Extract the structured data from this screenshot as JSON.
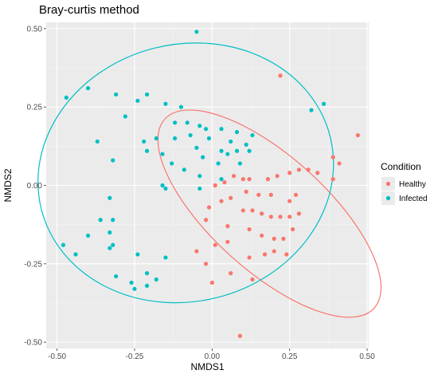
{
  "chart_data": {
    "type": "scatter",
    "title": "Bray-curtis method",
    "xlabel": "NMDS1",
    "ylabel": "NMDS2",
    "xlim": [
      -0.535,
      0.505
    ],
    "ylim": [
      -0.52,
      0.52
    ],
    "x_ticks": [
      -0.5,
      -0.25,
      0.0,
      0.25,
      0.5
    ],
    "x_tick_labels": [
      "-0.50",
      "-0.25",
      "0.00",
      "0.25",
      "0.50"
    ],
    "y_ticks": [
      -0.5,
      -0.25,
      0.0,
      0.25,
      0.5
    ],
    "y_tick_labels": [
      "-0.50",
      "-0.25",
      "0.00",
      "0.25",
      "0.50"
    ],
    "grid": true,
    "legend": {
      "title": "Condition",
      "placement": "right"
    },
    "series": [
      {
        "name": "Healthy",
        "color": "#f8766d",
        "points": [
          [
            0.22,
            0.35
          ],
          [
            0.47,
            0.16
          ],
          [
            0.41,
            0.07
          ],
          [
            0.39,
            0.09
          ],
          [
            0.39,
            0.02
          ],
          [
            0.34,
            0.04
          ],
          [
            0.31,
            0.05
          ],
          [
            0.28,
            0.05
          ],
          [
            0.25,
            0.04
          ],
          [
            0.21,
            0.03
          ],
          [
            0.18,
            0.02
          ],
          [
            0.12,
            0.02
          ],
          [
            0.1,
            0.02
          ],
          [
            0.07,
            0.03
          ],
          [
            0.04,
            0.01
          ],
          [
            0.01,
            0.0
          ],
          [
            0.25,
            -0.05
          ],
          [
            0.27,
            -0.03
          ],
          [
            0.19,
            -0.03
          ],
          [
            0.15,
            -0.03
          ],
          [
            0.11,
            -0.02
          ],
          [
            0.06,
            -0.04
          ],
          [
            0.03,
            -0.05
          ],
          [
            0.1,
            -0.08
          ],
          [
            0.13,
            -0.08
          ],
          [
            0.16,
            -0.09
          ],
          [
            0.19,
            -0.1
          ],
          [
            0.22,
            -0.1
          ],
          [
            0.25,
            -0.1
          ],
          [
            0.28,
            -0.09
          ],
          [
            -0.01,
            -0.07
          ],
          [
            -0.02,
            -0.11
          ],
          [
            0.05,
            -0.13
          ],
          [
            0.12,
            -0.14
          ],
          [
            0.16,
            -0.16
          ],
          [
            0.2,
            -0.17
          ],
          [
            0.23,
            -0.17
          ],
          [
            0.26,
            -0.14
          ],
          [
            0.2,
            -0.21
          ],
          [
            0.24,
            -0.22
          ],
          [
            0.17,
            -0.22
          ],
          [
            0.12,
            -0.23
          ],
          [
            0.05,
            -0.18
          ],
          [
            0.01,
            -0.19
          ],
          [
            -0.02,
            -0.25
          ],
          [
            0.06,
            -0.28
          ],
          [
            0.13,
            -0.3
          ],
          [
            0.0,
            -0.31
          ],
          [
            0.09,
            -0.48
          ],
          [
            -0.05,
            -0.21
          ]
        ]
      },
      {
        "name": "Infected",
        "color": "#00bfc4",
        "points": [
          [
            -0.05,
            0.49
          ],
          [
            -0.47,
            0.28
          ],
          [
            -0.4,
            0.31
          ],
          [
            -0.31,
            0.29
          ],
          [
            -0.24,
            0.27
          ],
          [
            -0.21,
            0.29
          ],
          [
            -0.28,
            0.22
          ],
          [
            -0.15,
            0.26
          ],
          [
            -0.1,
            0.25
          ],
          [
            -0.12,
            0.2
          ],
          [
            -0.08,
            0.2
          ],
          [
            -0.04,
            0.19
          ],
          [
            -0.02,
            0.18
          ],
          [
            0.03,
            0.18
          ],
          [
            0.08,
            0.17
          ],
          [
            0.13,
            0.16
          ],
          [
            -0.18,
            0.15
          ],
          [
            -0.12,
            0.15
          ],
          [
            -0.07,
            0.16
          ],
          [
            -0.01,
            0.15
          ],
          [
            0.06,
            0.14
          ],
          [
            0.11,
            0.13
          ],
          [
            -0.37,
            0.14
          ],
          [
            -0.22,
            0.14
          ],
          [
            -0.05,
            0.12
          ],
          [
            0.03,
            0.11
          ],
          [
            0.08,
            0.11
          ],
          [
            0.12,
            0.11
          ],
          [
            -0.21,
            0.11
          ],
          [
            -0.16,
            0.1
          ],
          [
            -0.03,
            0.09
          ],
          [
            0.05,
            0.1
          ],
          [
            -0.32,
            0.08
          ],
          [
            -0.13,
            0.07
          ],
          [
            -0.09,
            0.05
          ],
          [
            0.02,
            0.07
          ],
          [
            0.09,
            0.07
          ],
          [
            -0.04,
            0.03
          ],
          [
            0.03,
            0.02
          ],
          [
            -0.16,
            0.0
          ],
          [
            -0.15,
            -0.01
          ],
          [
            -0.04,
            -0.01
          ],
          [
            -0.33,
            -0.04
          ],
          [
            0.36,
            0.26
          ],
          [
            0.32,
            0.24
          ],
          [
            -0.36,
            -0.11
          ],
          [
            -0.32,
            -0.11
          ],
          [
            -0.33,
            -0.15
          ],
          [
            -0.4,
            -0.16
          ],
          [
            -0.48,
            -0.19
          ],
          [
            -0.33,
            -0.2
          ],
          [
            -0.32,
            -0.19
          ],
          [
            -0.44,
            -0.22
          ],
          [
            -0.24,
            -0.22
          ],
          [
            -0.15,
            -0.23
          ],
          [
            -0.31,
            -0.29
          ],
          [
            -0.21,
            -0.28
          ],
          [
            -0.26,
            -0.31
          ],
          [
            -0.18,
            -0.3
          ],
          [
            -0.21,
            -0.32
          ],
          [
            -0.25,
            -0.33
          ]
        ]
      }
    ],
    "ellipses": [
      {
        "series": "Healthy",
        "color": "#f8766d",
        "cx": 0.185,
        "cy": -0.09,
        "rx": 0.185,
        "ry": 0.45,
        "rotation_deg": 48
      },
      {
        "series": "Infected",
        "color": "#00bfc4",
        "cx": -0.085,
        "cy": 0.04,
        "rx": 0.48,
        "ry": 0.41,
        "rotation_deg": 14
      }
    ]
  },
  "theme": {
    "panel_background": "#ebebeb",
    "grid_major": "#ffffff",
    "grid_minor": "#f2f2f2",
    "legend_key_background": "#ebebeb"
  }
}
